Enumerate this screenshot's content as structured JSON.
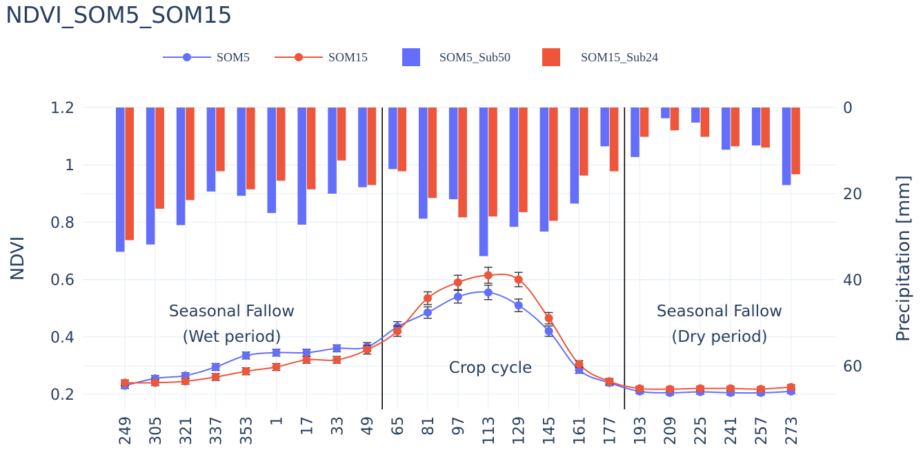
{
  "title": "NDVI_SOM5_SOM15",
  "legend": {
    "som5": "SOM5",
    "som15": "SOM15",
    "som5_sub": "SOM5_Sub50",
    "som15_sub": "SOM15_Sub24"
  },
  "colors": {
    "blue": "#636efa",
    "red": "#ef553b",
    "text": "#2a3f5f",
    "grid": "#e5ecf6"
  },
  "chart_data": {
    "type": "line+bar",
    "title": "NDVI_SOM5_SOM15",
    "categories": [
      "249",
      "305",
      "321",
      "337",
      "353",
      "1",
      "17",
      "33",
      "49",
      "65",
      "81",
      "97",
      "113",
      "129",
      "145",
      "161",
      "177",
      "193",
      "209",
      "225",
      "241",
      "257",
      "273"
    ],
    "ylabel": "NDVI",
    "y2label": "Precipitation [mm]",
    "ylim": [
      0.15,
      1.2
    ],
    "y2lim": [
      0,
      70
    ],
    "y2_reversed": true,
    "yticks": [
      "0.2",
      "0.4",
      "0.6",
      "0.8",
      "1",
      "1.2"
    ],
    "y2ticks": [
      "0",
      "20",
      "40",
      "60"
    ],
    "grid": true,
    "legend_position": "top",
    "series": [
      {
        "name": "SOM5",
        "type": "line",
        "axis": "y",
        "values": [
          0.23,
          0.255,
          0.265,
          0.295,
          0.335,
          0.345,
          0.345,
          0.36,
          0.365,
          0.435,
          0.485,
          0.54,
          0.555,
          0.51,
          0.42,
          0.285,
          0.24,
          0.21,
          0.205,
          0.208,
          0.205,
          0.205,
          0.21
        ],
        "errors": [
          0.01,
          0.01,
          0.01,
          0.012,
          0.012,
          0.012,
          0.012,
          0.012,
          0.015,
          0.018,
          0.02,
          0.022,
          0.025,
          0.022,
          0.018,
          0.012,
          0.01,
          0.008,
          0.008,
          0.008,
          0.008,
          0.008,
          0.008
        ]
      },
      {
        "name": "SOM15",
        "type": "line",
        "axis": "y",
        "values": [
          0.24,
          0.24,
          0.245,
          0.26,
          0.28,
          0.295,
          0.32,
          0.32,
          0.355,
          0.42,
          0.535,
          0.59,
          0.615,
          0.6,
          0.465,
          0.305,
          0.245,
          0.22,
          0.218,
          0.22,
          0.22,
          0.218,
          0.225
        ],
        "errors": [
          0.01,
          0.01,
          0.01,
          0.012,
          0.012,
          0.012,
          0.012,
          0.012,
          0.015,
          0.018,
          0.022,
          0.025,
          0.028,
          0.025,
          0.02,
          0.012,
          0.01,
          0.008,
          0.008,
          0.008,
          0.008,
          0.008,
          0.008
        ]
      },
      {
        "name": "SOM5_Sub50",
        "type": "bar",
        "axis": "y2",
        "values": [
          33.5,
          31.8,
          27.3,
          19.5,
          20.5,
          24.5,
          27.2,
          20.0,
          18.5,
          14.3,
          25.8,
          21.3,
          34.5,
          27.7,
          28.8,
          22.3,
          9.0,
          11.5,
          2.5,
          3.5,
          9.8,
          8.8,
          18.0
        ]
      },
      {
        "name": "SOM15_Sub24",
        "type": "bar",
        "axis": "y2",
        "values": [
          30.8,
          23.5,
          21.5,
          14.8,
          19.0,
          17.0,
          19.0,
          12.3,
          18.0,
          14.8,
          21.0,
          25.5,
          25.3,
          24.3,
          26.3,
          15.8,
          14.8,
          6.8,
          5.3,
          6.8,
          9.0,
          9.3,
          15.5
        ]
      }
    ],
    "vlines_after_categories": [
      "49",
      "177"
    ],
    "annotations": [
      {
        "id": "wet1",
        "text": "Seasonal Fallow"
      },
      {
        "id": "wet2",
        "text": "(Wet period)"
      },
      {
        "id": "crop",
        "text": "Crop cycle"
      },
      {
        "id": "dry1",
        "text": "Seasonal Fallow"
      },
      {
        "id": "dry2",
        "text": "(Dry period)"
      }
    ]
  }
}
